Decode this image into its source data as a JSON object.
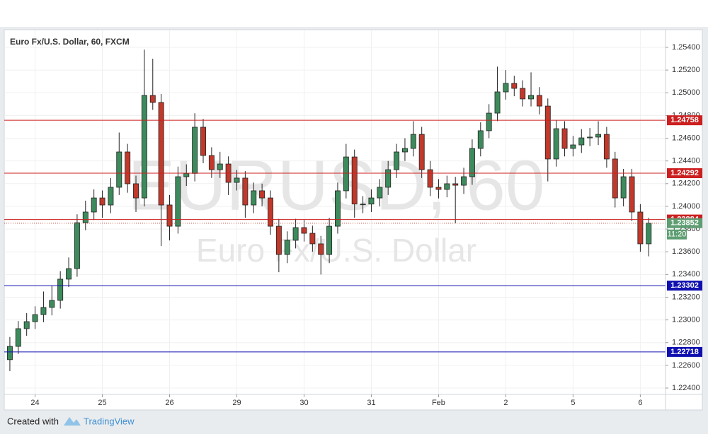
{
  "chart_data": {
    "type": "candlestick",
    "title": "Euro Fx/U.S. Dollar, 60, FXCM",
    "watermark": "EURUSD, 60",
    "watermark_subtitle": "Euro Fx/U.S. Dollar",
    "open": [
      1.2265,
      1.22767,
      1.22923,
      1.22985,
      1.23047,
      1.2311,
      1.23172,
      1.23359,
      1.23452,
      1.23856,
      1.2395,
      1.24074,
      1.24012,
      1.24168,
      1.24479,
      1.24199,
      1.24074,
      1.24977,
      1.24915,
      1.24012,
      1.23825,
      1.24261,
      1.2429,
      1.24697,
      1.24448,
      1.24323,
      1.24373,
      1.24211,
      1.24249,
      1.24012,
      1.24137,
      1.24074,
      1.23825,
      1.23576,
      1.23701,
      1.23813,
      1.23763,
      1.2367,
      1.23576,
      1.23825,
      1.24137,
      1.24435,
      1.2402,
      1.2402,
      1.24074,
      1.24168,
      1.24323,
      1.24479,
      1.2451,
      1.24634,
      1.24323,
      1.24168,
      1.24149,
      1.24199,
      1.24186,
      1.24261,
      1.2451,
      1.24666,
      1.24821,
      1.25008,
      1.25083,
      1.25039,
      1.24946,
      1.24977,
      1.24883,
      1.24417,
      1.24684,
      1.2451,
      1.24541,
      1.24603,
      1.2461,
      1.24634,
      1.24417,
      1.24074,
      1.24261,
      1.2395,
      1.2367
    ],
    "high": [
      1.2285,
      1.2299,
      1.2306,
      1.2312,
      1.2325,
      1.233,
      1.2343,
      1.2355,
      1.2393,
      1.2405,
      1.2415,
      1.2414,
      1.2425,
      1.2465,
      1.2455,
      1.2427,
      1.2538,
      1.253,
      1.2499,
      1.241,
      1.2435,
      1.2437,
      1.2482,
      1.2477,
      1.2452,
      1.2448,
      1.2444,
      1.2432,
      1.2431,
      1.2421,
      1.242,
      1.2414,
      1.2389,
      1.2378,
      1.2389,
      1.2388,
      1.2383,
      1.2374,
      1.239,
      1.2421,
      1.2455,
      1.245,
      1.2409,
      1.2415,
      1.2424,
      1.244,
      1.2455,
      1.246,
      1.2475,
      1.247,
      1.244,
      1.2424,
      1.2427,
      1.2426,
      1.2434,
      1.2459,
      1.2474,
      1.249,
      1.2523,
      1.252,
      1.2515,
      1.2511,
      1.2518,
      1.2505,
      1.2495,
      1.2476,
      1.2475,
      1.2462,
      1.2468,
      1.2469,
      1.2475,
      1.247,
      1.2448,
      1.2433,
      1.2433,
      1.2402,
      1.239
    ],
    "low": [
      1.2255,
      1.227,
      1.2286,
      1.2292,
      1.2298,
      1.2304,
      1.231,
      1.2329,
      1.2338,
      1.2379,
      1.2388,
      1.239,
      1.2394,
      1.241,
      1.2412,
      1.2395,
      1.24,
      1.2485,
      1.2365,
      1.237,
      1.2376,
      1.2418,
      1.2422,
      1.2438,
      1.2425,
      1.2425,
      1.241,
      1.2414,
      1.239,
      1.2394,
      1.24,
      1.2375,
      1.2342,
      1.235,
      1.2363,
      1.2369,
      1.236,
      1.234,
      1.235,
      1.2376,
      1.2407,
      1.239,
      1.2394,
      1.2395,
      1.24,
      1.241,
      1.2425,
      1.244,
      1.2444,
      1.2425,
      1.2409,
      1.2407,
      1.2408,
      1.2385,
      1.2411,
      1.2419,
      1.2444,
      1.246,
      1.2475,
      1.2494,
      1.2497,
      1.2488,
      1.2488,
      1.2481,
      1.2422,
      1.2435,
      1.2444,
      1.2444,
      1.2447,
      1.2453,
      1.2454,
      1.2434,
      1.2399,
      1.24,
      1.2387,
      1.236,
      1.2356
    ],
    "close": [
      1.22767,
      1.22923,
      1.22985,
      1.23047,
      1.2311,
      1.23172,
      1.23359,
      1.23452,
      1.23856,
      1.2395,
      1.24074,
      1.24012,
      1.24168,
      1.24479,
      1.24199,
      1.24074,
      1.24977,
      1.24915,
      1.24012,
      1.23825,
      1.24261,
      1.2429,
      1.24697,
      1.24448,
      1.24323,
      1.24373,
      1.24211,
      1.24249,
      1.24012,
      1.24137,
      1.24074,
      1.23825,
      1.23576,
      1.23701,
      1.23813,
      1.23763,
      1.2367,
      1.23576,
      1.23825,
      1.24137,
      1.24435,
      1.2402,
      1.2402,
      1.24074,
      1.24168,
      1.24323,
      1.24479,
      1.2451,
      1.24634,
      1.24323,
      1.24168,
      1.24149,
      1.24199,
      1.24186,
      1.24261,
      1.2451,
      1.24666,
      1.24821,
      1.25008,
      1.25083,
      1.25039,
      1.24946,
      1.24977,
      1.24883,
      1.24417,
      1.24684,
      1.2451,
      1.24541,
      1.24603,
      1.2461,
      1.24634,
      1.24417,
      1.24074,
      1.24261,
      1.2395,
      1.2367,
      1.23852
    ],
    "up_color": "#3d8b5c",
    "down_color": "#c0392b",
    "xlim": [
      -0.5,
      78
    ],
    "xticks": [
      {
        "value": 3,
        "label": "24"
      },
      {
        "value": 11,
        "label": "25"
      },
      {
        "value": 19,
        "label": "26"
      },
      {
        "value": 27,
        "label": "29"
      },
      {
        "value": 35,
        "label": "30"
      },
      {
        "value": 43,
        "label": "31"
      },
      {
        "value": 51,
        "label": "Feb"
      },
      {
        "value": 59,
        "label": "2"
      },
      {
        "value": 67,
        "label": "5"
      },
      {
        "value": 75,
        "label": "6"
      }
    ],
    "ylim": [
      1.22344,
      1.25537
    ],
    "yticks": [
      {
        "value": 1.224,
        "label": "1.22400"
      },
      {
        "value": 1.226,
        "label": "1.22600"
      },
      {
        "value": 1.228,
        "label": "1.22800"
      },
      {
        "value": 1.23,
        "label": "1.23000"
      },
      {
        "value": 1.232,
        "label": "1.23200"
      },
      {
        "value": 1.234,
        "label": "1.23400"
      },
      {
        "value": 1.236,
        "label": "1.23600"
      },
      {
        "value": 1.238,
        "label": "1.23800"
      },
      {
        "value": 1.24,
        "label": "1.24000"
      },
      {
        "value": 1.242,
        "label": "1.24200"
      },
      {
        "value": 1.244,
        "label": "1.24400"
      },
      {
        "value": 1.246,
        "label": "1.24600"
      },
      {
        "value": 1.248,
        "label": "1.24800"
      },
      {
        "value": 1.25,
        "label": "1.25000"
      },
      {
        "value": 1.252,
        "label": "1.25200"
      },
      {
        "value": 1.254,
        "label": "1.25400"
      }
    ],
    "grid": true,
    "levels": [
      {
        "value": 1.24758,
        "color": "#cc1f1f"
      },
      {
        "value": 1.24292,
        "color": "#cc1f1f"
      },
      {
        "value": 1.23884,
        "color": "#cc1f1f"
      },
      {
        "value": 1.23302,
        "color": "#1010b0"
      },
      {
        "value": 1.22718,
        "color": "#1010b0"
      }
    ],
    "last_price_color": "#5e9e72",
    "countdown": "11:20"
  },
  "footer": {
    "created_with": "Created with",
    "brand": "TradingView"
  }
}
